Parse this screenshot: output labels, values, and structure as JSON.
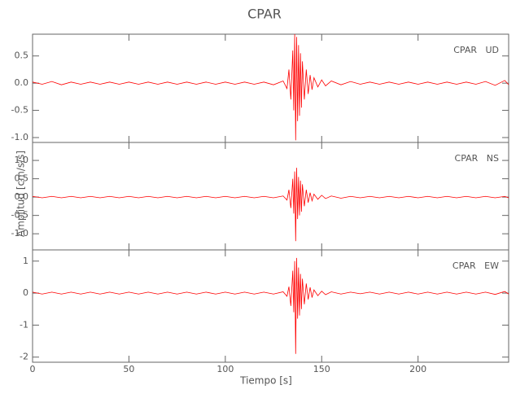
{
  "figure": {
    "title": "CPAR",
    "x_label": "Tiempo [s]",
    "y_label": "Amplitud [cm/s/s]"
  },
  "chart_data": [
    {
      "type": "line",
      "annotation": "CPAR   UD",
      "color": "#ff0000",
      "xlim": [
        0,
        247
      ],
      "xticks": [
        0,
        50,
        100,
        150,
        200
      ],
      "ylim": [
        -1.09,
        0.9
      ],
      "yticks": [
        0.5,
        {
          "value": 0,
          "label": "0.0"
        },
        -0.5,
        {
          "value": -1,
          "label": "-1.0"
        }
      ],
      "x": [
        0,
        5,
        10,
        15,
        20,
        25,
        30,
        35,
        40,
        45,
        50,
        55,
        60,
        65,
        70,
        75,
        80,
        85,
        90,
        95,
        100,
        105,
        110,
        115,
        120,
        125,
        130,
        132,
        133,
        134,
        135,
        135.5,
        136,
        136.5,
        137,
        137.5,
        138,
        138.5,
        139,
        139.5,
        140,
        141,
        142,
        143,
        144,
        145,
        146,
        148,
        150,
        152,
        155,
        160,
        165,
        170,
        175,
        180,
        185,
        190,
        195,
        200,
        205,
        210,
        215,
        220,
        225,
        230,
        235,
        240,
        245,
        247
      ],
      "values": [
        0.02,
        -0.02,
        0.03,
        -0.03,
        0.02,
        -0.02,
        0.02,
        -0.02,
        0.02,
        -0.02,
        0.02,
        -0.02,
        0.02,
        -0.02,
        0.02,
        -0.02,
        0.02,
        -0.02,
        0.02,
        -0.02,
        0.02,
        -0.02,
        0.02,
        -0.02,
        0.02,
        -0.03,
        0.04,
        -0.1,
        0.25,
        -0.3,
        0.6,
        -0.5,
        0.9,
        -1.05,
        0.85,
        -0.7,
        0.7,
        -0.6,
        0.55,
        -0.45,
        0.4,
        -0.3,
        0.25,
        -0.2,
        0.15,
        -0.12,
        0.1,
        -0.07,
        0.06,
        -0.05,
        0.04,
        -0.03,
        0.03,
        -0.02,
        0.02,
        -0.02,
        0.02,
        -0.02,
        0.02,
        -0.02,
        0.02,
        -0.02,
        0.02,
        -0.02,
        0.02,
        -0.02,
        0.03,
        -0.04,
        0.05,
        -0.03
      ]
    },
    {
      "type": "line",
      "annotation": "CPAR   NS",
      "color": "#ff0000",
      "xlim": [
        0,
        247
      ],
      "xticks": [
        0,
        50,
        100,
        150,
        200
      ],
      "ylim": [
        -1.44,
        1.49
      ],
      "yticks": [
        {
          "value": 1,
          "label": "1.0"
        },
        0.5,
        {
          "value": 0,
          "label": "0.0"
        },
        -0.5,
        {
          "value": -1,
          "label": "-1.0"
        }
      ],
      "x": [
        0,
        5,
        10,
        15,
        20,
        25,
        30,
        35,
        40,
        45,
        50,
        55,
        60,
        65,
        70,
        75,
        80,
        85,
        90,
        95,
        100,
        105,
        110,
        115,
        120,
        125,
        130,
        132,
        133,
        134,
        135,
        135.5,
        136,
        136.5,
        137,
        137.5,
        138,
        138.5,
        139,
        139.5,
        140,
        141,
        142,
        143,
        144,
        145,
        146,
        148,
        150,
        152,
        155,
        160,
        165,
        170,
        175,
        180,
        185,
        190,
        195,
        200,
        205,
        210,
        215,
        220,
        225,
        230,
        235,
        240,
        245,
        247
      ],
      "values": [
        0.02,
        -0.02,
        0.02,
        -0.02,
        0.02,
        -0.02,
        0.02,
        -0.02,
        0.02,
        -0.02,
        0.02,
        -0.02,
        0.02,
        -0.02,
        0.02,
        -0.02,
        0.02,
        -0.02,
        0.02,
        -0.02,
        0.02,
        -0.02,
        0.02,
        -0.02,
        0.02,
        -0.02,
        0.03,
        -0.08,
        0.2,
        -0.3,
        0.5,
        -0.45,
        0.7,
        -1.2,
        0.8,
        -0.6,
        0.55,
        -0.5,
        0.45,
        -0.4,
        0.35,
        -0.25,
        0.2,
        -0.15,
        0.12,
        -0.1,
        0.08,
        -0.06,
        0.05,
        -0.04,
        0.03,
        -0.03,
        0.02,
        -0.02,
        0.02,
        -0.02,
        0.02,
        -0.02,
        0.02,
        -0.02,
        0.02,
        -0.02,
        0.02,
        -0.02,
        0.02,
        -0.02,
        0.02,
        -0.02,
        0.02,
        -0.02
      ]
    },
    {
      "type": "line",
      "annotation": "CPAR   EW",
      "color": "#ff0000",
      "xlim": [
        0,
        247
      ],
      "xticks": [
        0,
        50,
        100,
        150,
        200
      ],
      "ylim": [
        -2.16,
        1.35
      ],
      "yticks": [
        1,
        0,
        -1,
        -2
      ],
      "x": [
        0,
        5,
        10,
        15,
        20,
        25,
        30,
        35,
        40,
        45,
        50,
        55,
        60,
        65,
        70,
        75,
        80,
        85,
        90,
        95,
        100,
        105,
        110,
        115,
        120,
        125,
        130,
        132,
        133,
        134,
        135,
        135.5,
        136,
        136.5,
        137,
        137.5,
        138,
        138.5,
        139,
        139.5,
        140,
        141,
        142,
        143,
        144,
        145,
        146,
        148,
        150,
        152,
        155,
        160,
        165,
        170,
        175,
        180,
        185,
        190,
        195,
        200,
        205,
        210,
        215,
        220,
        225,
        230,
        235,
        240,
        245,
        247
      ],
      "values": [
        0.03,
        -0.03,
        0.03,
        -0.03,
        0.03,
        -0.03,
        0.03,
        -0.03,
        0.03,
        -0.03,
        0.03,
        -0.03,
        0.03,
        -0.03,
        0.03,
        -0.03,
        0.03,
        -0.03,
        0.03,
        -0.03,
        0.03,
        -0.03,
        0.03,
        -0.03,
        0.03,
        -0.03,
        0.04,
        -0.1,
        0.2,
        -0.4,
        0.7,
        -0.6,
        1.0,
        -1.9,
        1.1,
        -0.8,
        0.8,
        -0.7,
        0.6,
        -0.5,
        0.45,
        -0.35,
        0.3,
        -0.2,
        0.18,
        -0.14,
        0.1,
        -0.08,
        0.06,
        -0.05,
        0.04,
        -0.03,
        0.03,
        -0.02,
        0.03,
        -0.03,
        0.03,
        -0.03,
        0.03,
        -0.03,
        0.03,
        -0.03,
        0.03,
        -0.03,
        0.03,
        -0.03,
        0.03,
        -0.04,
        0.05,
        -0.03
      ]
    }
  ]
}
